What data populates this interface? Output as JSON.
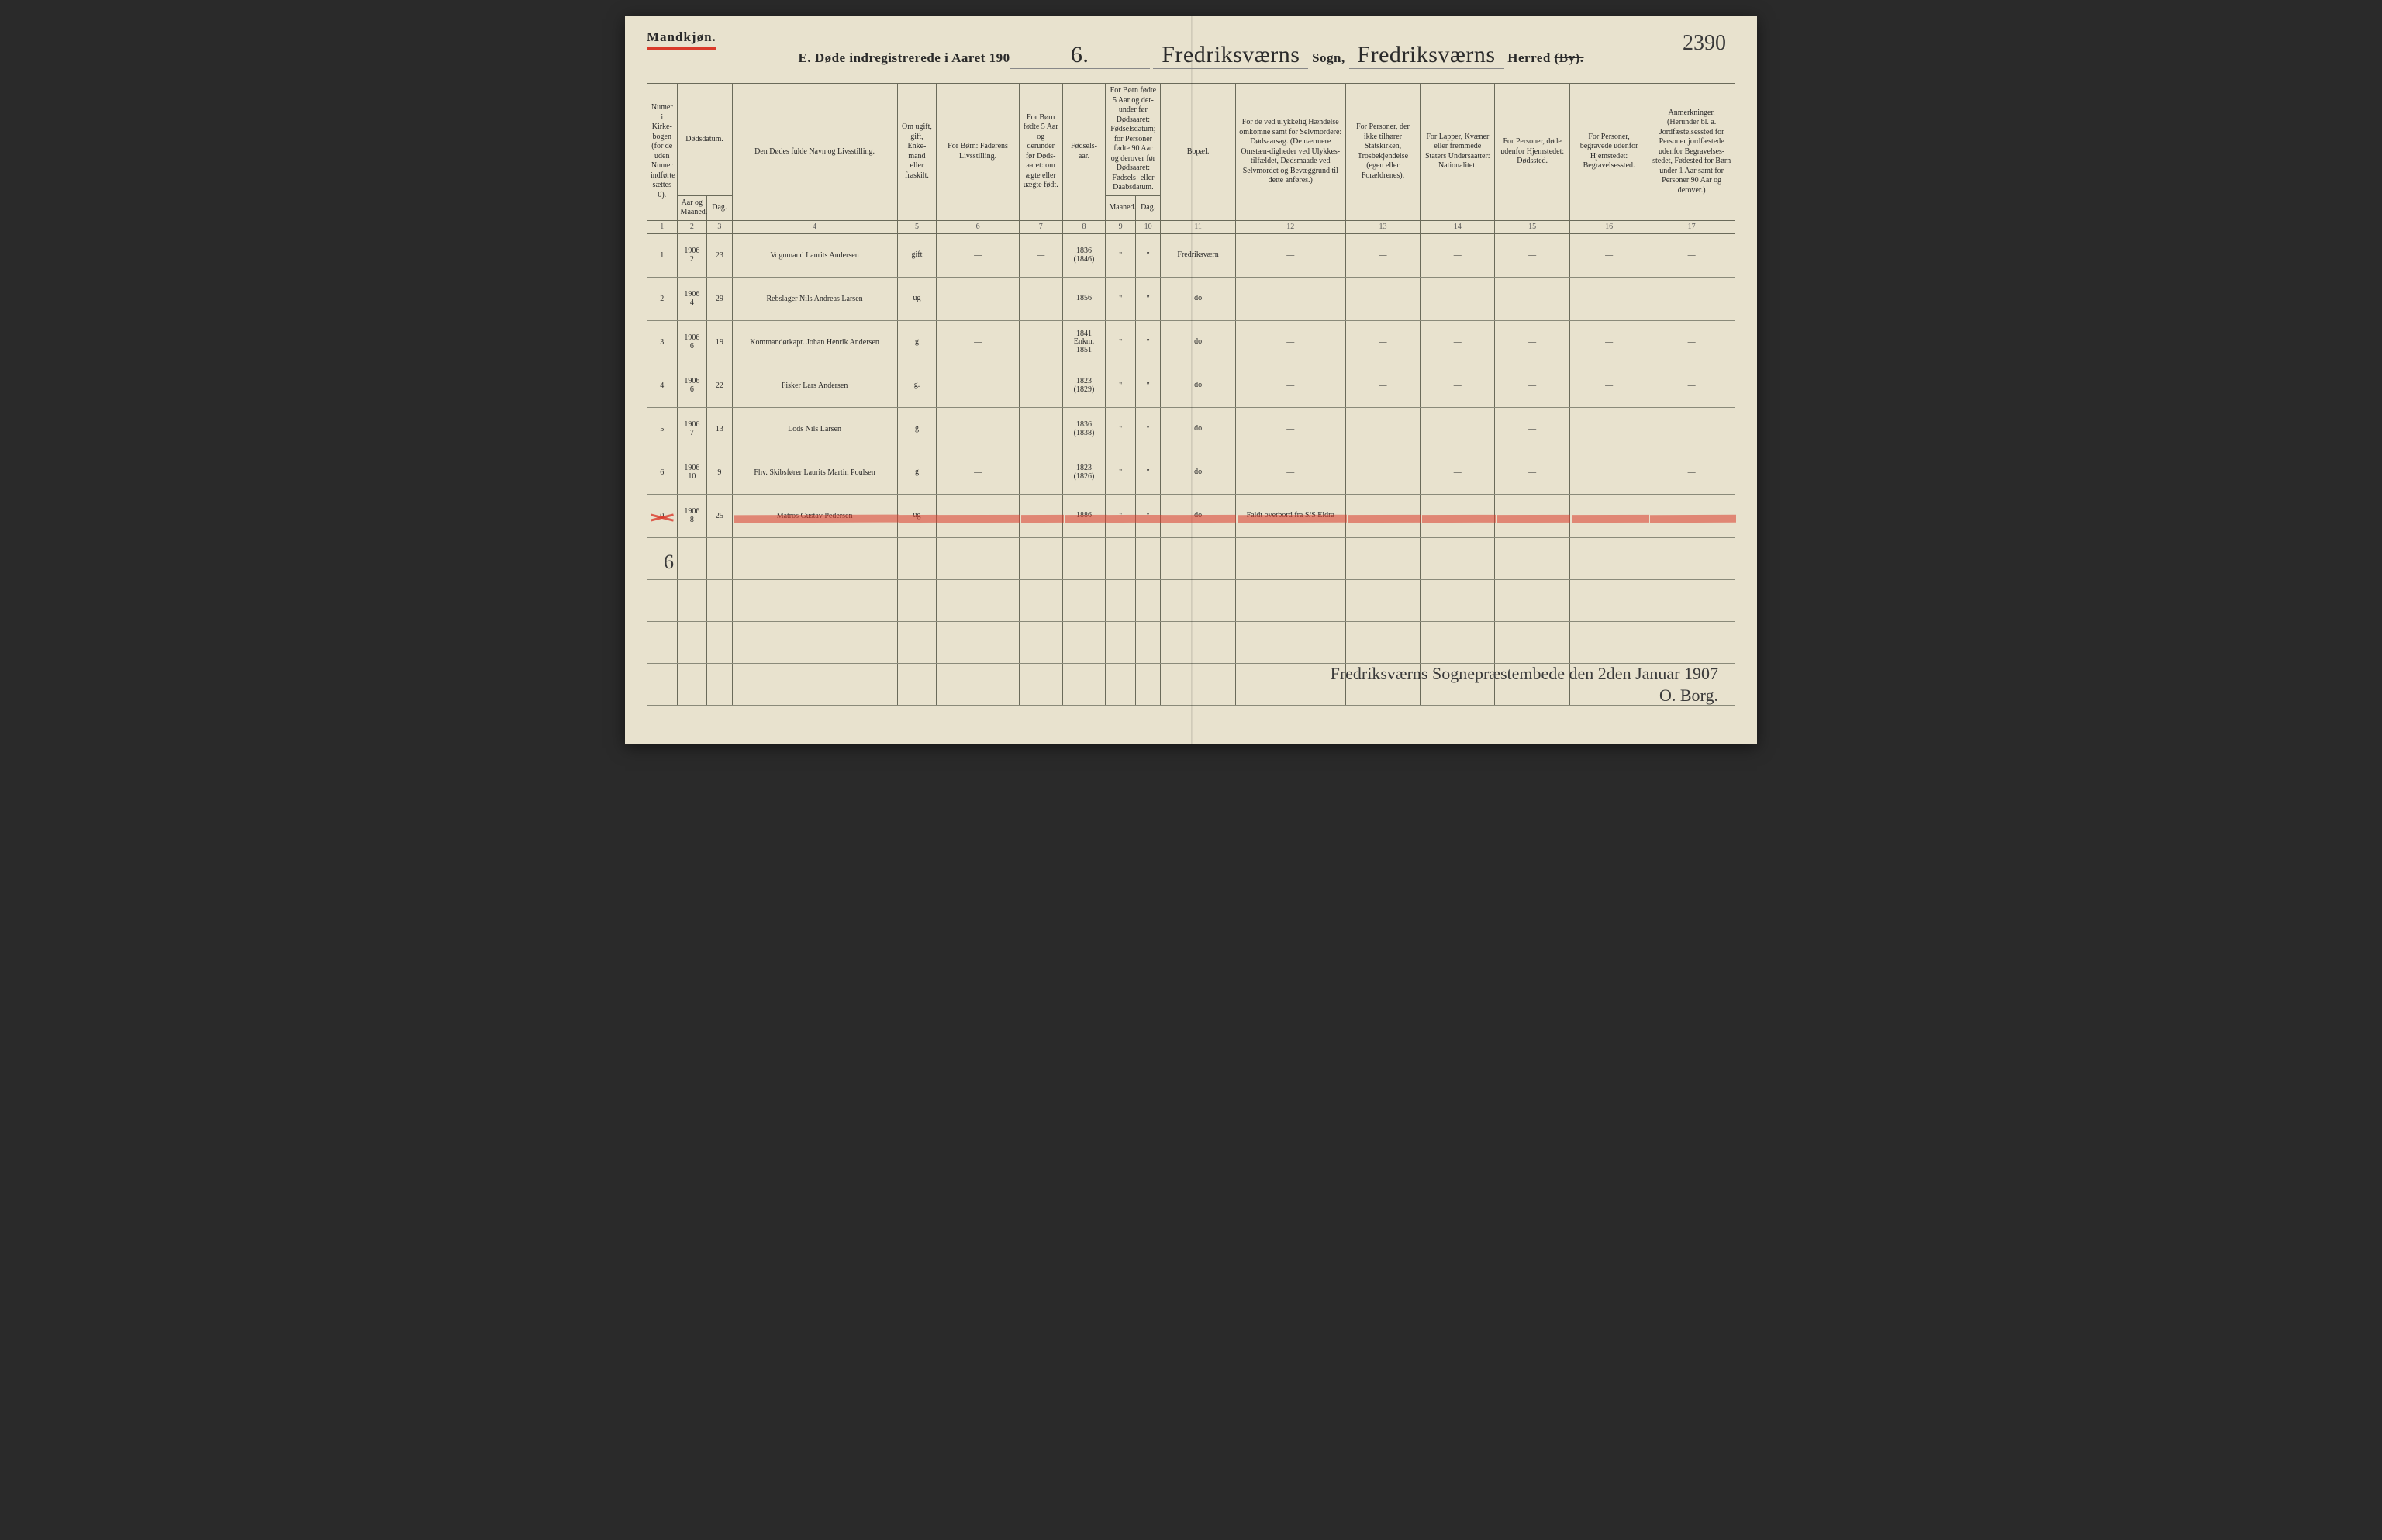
{
  "gender_label": "Mandkjøn.",
  "page_number": "2390",
  "title": {
    "prefix": "E.  Døde indregistrerede i Aaret 190",
    "year_suffix": "6.",
    "sogn_value": "Fredriksværns",
    "sogn_label": "Sogn,",
    "herred_value": "Fredriksværns",
    "herred_label": "Herred",
    "by_label": "(By)."
  },
  "columns": {
    "c1": "Numer i Kirke-bogen (for de uden Numer indførte sættes 0).",
    "c2_group": "Dødsdatum.",
    "c2a": "Aar og Maaned.",
    "c2b": "Dag.",
    "c4": "Den Dødes fulde Navn og Livsstilling.",
    "c5": "Om ugift, gift, Enke-mand eller fraskilt.",
    "c6": "For Børn: Faderens Livsstilling.",
    "c7": "For Børn fødte 5 Aar og derunder før Døds-aaret: om ægte eller uægte født.",
    "c8": "Fødsels-aar.",
    "c9_group": "For Børn fødte 5 Aar og der-under før Dødsaaret: Fødselsdatum; for Personer fødte 90 Aar og derover før Dødsaaret: Fødsels- eller Daabsdatum.",
    "c9a": "Maaned.",
    "c9b": "Dag.",
    "c11": "Bopæl.",
    "c12": "For de ved ulykkelig Hændelse omkomne samt for Selvmordere: Dødsaarsag. (De nærmere Omstæn-digheder ved Ulykkes-tilfældet, Dødsmaade ved Selvmordet og Bevæggrund til dette anføres.)",
    "c13": "For Personer, der ikke tilhører Statskirken, Trosbekjendelse (egen eller Forældrenes).",
    "c14": "For Lapper, Kvæner eller fremmede Staters Undersaatter: Nationalitet.",
    "c15": "For Personer, døde udenfor Hjemstedet: Dødssted.",
    "c16": "For Personer, begravede udenfor Hjemstedet: Begravelsessted.",
    "c17": "Anmerkninger. (Herunder bl. a. Jordfæstelsessted for Personer jordfæstede udenfor Begravelses-stedet, Fødested for Børn under 1 Aar samt for Personer 90 Aar og derover.)"
  },
  "colnums": [
    "1",
    "2",
    "3",
    "4",
    "5",
    "6",
    "7",
    "8",
    "9",
    "10",
    "11",
    "12",
    "13",
    "14",
    "15",
    "16",
    "17"
  ],
  "rows": [
    {
      "n": "1",
      "ym": "1906\n2",
      "d": "23",
      "name": "Vognmand Laurits Andersen",
      "stat": "gift",
      "far": "—",
      "c7": "—",
      "born": "1836\n(1846)",
      "m": "\"",
      "dag": "\"",
      "bopael": "Fredriksværn",
      "c12": "—",
      "c13": "—",
      "c14": "—",
      "c15": "—",
      "c16": "—",
      "c17": "—"
    },
    {
      "n": "2",
      "ym": "1906\n4",
      "d": "29",
      "name": "Rebslager Nils Andreas Larsen",
      "stat": "ug",
      "far": "—",
      "c7": "",
      "born": "1856",
      "m": "\"",
      "dag": "\"",
      "bopael": "do",
      "c12": "—",
      "c13": "—",
      "c14": "—",
      "c15": "—",
      "c16": "—",
      "c17": "—"
    },
    {
      "n": "3",
      "ym": "1906\n6",
      "d": "19",
      "name": "Kommandørkapt. Johan Henrik Andersen",
      "stat": "g",
      "far": "—",
      "c7": "",
      "born": "1841\nEnkm.\n1851",
      "m": "\"",
      "dag": "\"",
      "bopael": "do",
      "c12": "—",
      "c13": "—",
      "c14": "—",
      "c15": "—",
      "c16": "—",
      "c17": "—"
    },
    {
      "n": "4",
      "ym": "1906\n6",
      "d": "22",
      "name": "Fisker Lars Andersen",
      "stat": "g.",
      "far": "",
      "c7": "",
      "born": "1823\n(1829)",
      "m": "\"",
      "dag": "\"",
      "bopael": "do",
      "c12": "—",
      "c13": "—",
      "c14": "—",
      "c15": "—",
      "c16": "—",
      "c17": "—"
    },
    {
      "n": "5",
      "ym": "1906\n7",
      "d": "13",
      "name": "Lods Nils Larsen",
      "stat": "g",
      "far": "",
      "c7": "",
      "born": "1836\n(1838)",
      "m": "\"",
      "dag": "\"",
      "bopael": "do",
      "c12": "—",
      "c13": "",
      "c14": "",
      "c15": "—",
      "c16": "",
      "c17": ""
    },
    {
      "n": "6",
      "ym": "1906\n10",
      "d": "9",
      "name": "Fhv. Skibsfører Laurits Martin Poulsen",
      "stat": "g",
      "far": "—",
      "c7": "",
      "born": "1823\n(1826)",
      "m": "\"",
      "dag": "\"",
      "bopael": "do",
      "c12": "—",
      "c13": "",
      "c14": "—",
      "c15": "—",
      "c16": "",
      "c17": "—"
    },
    {
      "n": "0",
      "ym": "1906\n8",
      "d": "25",
      "name": "Matros Gustav Pedersen",
      "stat": "ug",
      "far": "",
      "c7": "—",
      "born": "1886",
      "m": "\"",
      "dag": "\"",
      "bopael": "do",
      "c12": "Faldt overbord fra S/S Eldra",
      "c13": "",
      "c14": "",
      "c15": "",
      "c16": "",
      "c17": "",
      "red": true
    }
  ],
  "tally": "6",
  "signature_line1": "Fredriksværns Sognepræstembede den 2den Januar 1907",
  "signature_line2": "O. Borg."
}
